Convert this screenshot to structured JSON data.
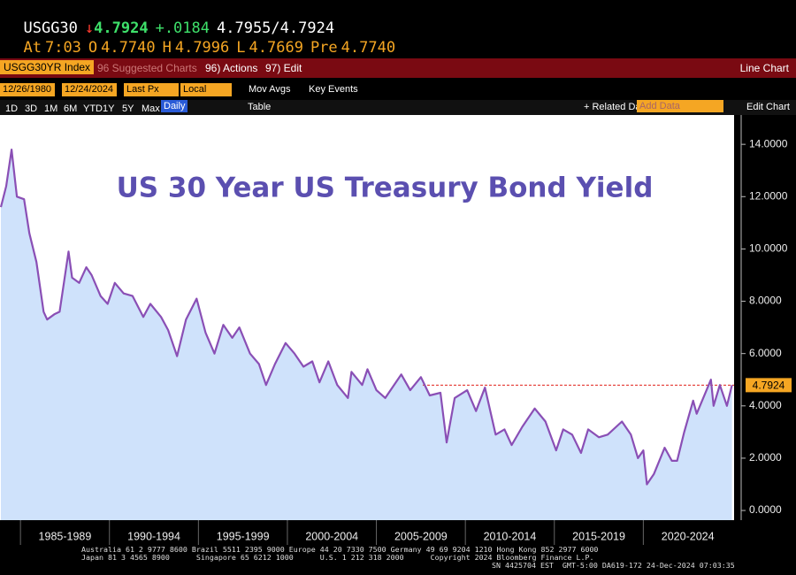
{
  "header": {
    "ticker": "USGG30",
    "arrow": "↓",
    "last": "4.7924",
    "change": "+.0184",
    "bid": "4.7955",
    "sep": "/",
    "ask": "4.7924",
    "at_label": "At",
    "time": "7:03",
    "open_label": "O",
    "open": "4.7740",
    "high_label": "H",
    "high": "4.7996",
    "low_label": "L",
    "low": "4.7669",
    "pre_label": "Pre",
    "pre": "4.7740"
  },
  "toolbar": {
    "security": "USGG30YR Index",
    "suggested": "96 Suggested Charts",
    "actions": "96) Actions",
    "edit": "97) Edit",
    "chart_type": "Line Chart"
  },
  "controls": {
    "start_date": "12/26/1980",
    "end_date": "12/24/2024",
    "field": "Last Px",
    "currency": "Local CCY",
    "mov_avgs": "Mov Avgs",
    "key_events": "Key Events"
  },
  "periods": {
    "buttons": [
      "1D",
      "3D",
      "1M",
      "6M",
      "YTD",
      "1Y",
      "5Y",
      "Max"
    ],
    "frequency": "Daily",
    "table": "Table",
    "related": "+ Related Dat",
    "add_data": "Add Data",
    "edit_chart": "Edit Chart"
  },
  "chart_data": {
    "type": "line",
    "title": "US 30 Year US Treasury Bond Yield",
    "color": "#8a4fb5",
    "area_color": "#cfe2fb",
    "grid": false,
    "x": [
      1983.9,
      1984.2,
      1984.5,
      1984.8,
      1985.2,
      1985.5,
      1985.9,
      1986.3,
      1986.5,
      1986.9,
      1987.2,
      1987.7,
      1987.9,
      1988.3,
      1988.7,
      1989.0,
      1989.5,
      1989.9,
      1990.3,
      1990.8,
      1991.3,
      1991.9,
      1992.3,
      1992.9,
      1993.3,
      1993.8,
      1994.3,
      1994.9,
      1995.4,
      1995.9,
      1996.4,
      1996.9,
      1997.3,
      1997.9,
      1998.4,
      1998.8,
      1999.3,
      1999.9,
      2000.4,
      2000.9,
      2001.4,
      2001.8,
      2002.3,
      2002.8,
      2003.4,
      2003.6,
      2004.2,
      2004.5,
      2005.0,
      2005.5,
      2006.4,
      2006.9,
      2007.5,
      2008.0,
      2008.6,
      2008.95,
      2009.4,
      2010.1,
      2010.6,
      2011.1,
      2011.7,
      2012.2,
      2012.6,
      2013.2,
      2013.9,
      2014.5,
      2015.1,
      2015.5,
      2016.0,
      2016.5,
      2016.9,
      2017.5,
      2018.0,
      2018.8,
      2019.3,
      2019.7,
      2020.0,
      2020.2,
      2020.6,
      2021.2,
      2021.6,
      2021.9,
      2022.3,
      2022.8,
      2023.0,
      2023.8,
      2023.95,
      2024.3,
      2024.7,
      2024.98
    ],
    "values": [
      11.6,
      12.4,
      13.8,
      12.0,
      11.9,
      10.6,
      9.5,
      7.6,
      7.3,
      7.5,
      7.6,
      9.9,
      8.9,
      8.7,
      9.3,
      9.0,
      8.2,
      7.9,
      8.7,
      8.3,
      8.2,
      7.4,
      7.9,
      7.4,
      6.9,
      5.9,
      7.3,
      8.1,
      6.8,
      6.0,
      7.1,
      6.6,
      7.0,
      6.0,
      5.6,
      4.8,
      5.6,
      6.4,
      6.0,
      5.5,
      5.7,
      4.9,
      5.7,
      4.8,
      4.3,
      5.3,
      4.8,
      5.4,
      4.6,
      4.3,
      5.2,
      4.6,
      5.1,
      4.4,
      4.5,
      2.6,
      4.3,
      4.6,
      3.8,
      4.7,
      2.9,
      3.1,
      2.5,
      3.2,
      3.9,
      3.4,
      2.3,
      3.1,
      2.9,
      2.2,
      3.1,
      2.8,
      2.9,
      3.4,
      2.9,
      2.0,
      2.3,
      1.0,
      1.4,
      2.4,
      1.9,
      1.9,
      3.0,
      4.2,
      3.7,
      5.0,
      4.0,
      4.8,
      4.0,
      4.7924
    ],
    "xlim": [
      1983.85,
      2025.2
    ],
    "ylim": [
      -0.37,
      15.02
    ],
    "yticks": [
      {
        "value": 0,
        "label": "0.0000"
      },
      {
        "value": 2,
        "label": "2.0000"
      },
      {
        "value": 4,
        "label": "4.0000"
      },
      {
        "value": 6,
        "label": "6.0000"
      },
      {
        "value": 8,
        "label": "8.0000"
      },
      {
        "value": 10,
        "label": "10.0000"
      },
      {
        "value": 12,
        "label": "12.0000"
      },
      {
        "value": 14,
        "label": "14.0000"
      }
    ],
    "x_periods": [
      {
        "start": 1985,
        "end": 1990,
        "label": "1985-1989"
      },
      {
        "start": 1990,
        "end": 1995,
        "label": "1990-1994"
      },
      {
        "start": 1995,
        "end": 2000,
        "label": "1995-1999"
      },
      {
        "start": 2000,
        "end": 2005,
        "label": "2000-2004"
      },
      {
        "start": 2005,
        "end": 2010,
        "label": "2005-2009"
      },
      {
        "start": 2010,
        "end": 2015,
        "label": "2010-2014"
      },
      {
        "start": 2015,
        "end": 2020,
        "label": "2015-2019"
      },
      {
        "start": 2020,
        "end": 2025,
        "label": "2020-2024"
      }
    ],
    "reference_line": {
      "value": 4.7924,
      "label": "4.7924",
      "color": "#e0201a",
      "label_color": "#f5a623"
    }
  },
  "footer": {
    "lines": [
      "Australia 61 2 9777 8600 Brazil 5511 2395 9000 Europe 44 20 7330 7500 Germany 49 69 9204 1210 Hong Kong 852 2977 6000",
      "Japan 81 3 4565 8900      Singapore 65 6212 1000      U.S. 1 212 318 2000      Copyright 2024 Bloomberg Finance L.P.",
      "SN 4425704 EST  GMT-5:00 DA619-172 24-Dec-2024 07:03:35"
    ]
  }
}
